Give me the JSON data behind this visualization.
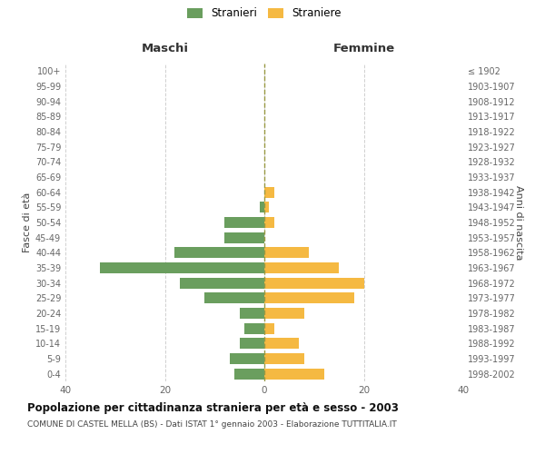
{
  "age_groups": [
    "0-4",
    "5-9",
    "10-14",
    "15-19",
    "20-24",
    "25-29",
    "30-34",
    "35-39",
    "40-44",
    "45-49",
    "50-54",
    "55-59",
    "60-64",
    "65-69",
    "70-74",
    "75-79",
    "80-84",
    "85-89",
    "90-94",
    "95-99",
    "100+"
  ],
  "birth_years": [
    "1998-2002",
    "1993-1997",
    "1988-1992",
    "1983-1987",
    "1978-1982",
    "1973-1977",
    "1968-1972",
    "1963-1967",
    "1958-1962",
    "1953-1957",
    "1948-1952",
    "1943-1947",
    "1938-1942",
    "1933-1937",
    "1928-1932",
    "1923-1927",
    "1918-1922",
    "1913-1917",
    "1908-1912",
    "1903-1907",
    "≤ 1902"
  ],
  "maschi": [
    6,
    7,
    5,
    4,
    5,
    12,
    17,
    33,
    18,
    8,
    8,
    1,
    0,
    0,
    0,
    0,
    0,
    0,
    0,
    0,
    0
  ],
  "femmine": [
    12,
    8,
    7,
    2,
    8,
    18,
    20,
    15,
    9,
    0,
    2,
    1,
    2,
    0,
    0,
    0,
    0,
    0,
    0,
    0,
    0
  ],
  "color_maschi": "#6a9e5e",
  "color_femmine": "#f5b942",
  "title": "Popolazione per cittadinanza straniera per età e sesso - 2003",
  "subtitle": "COMUNE DI CASTEL MELLA (BS) - Dati ISTAT 1° gennaio 2003 - Elaborazione TUTTITALIA.IT",
  "ylabel_left": "Fasce di età",
  "ylabel_right": "Anni di nascita",
  "label_maschi": "Maschi",
  "label_femmine": "Femmine",
  "xlim": 40,
  "legend_stranieri": "Stranieri",
  "legend_straniere": "Straniere",
  "background_color": "#ffffff",
  "grid_color": "#d0d0d0",
  "title_fontsize": 8.5,
  "subtitle_fontsize": 6.5
}
